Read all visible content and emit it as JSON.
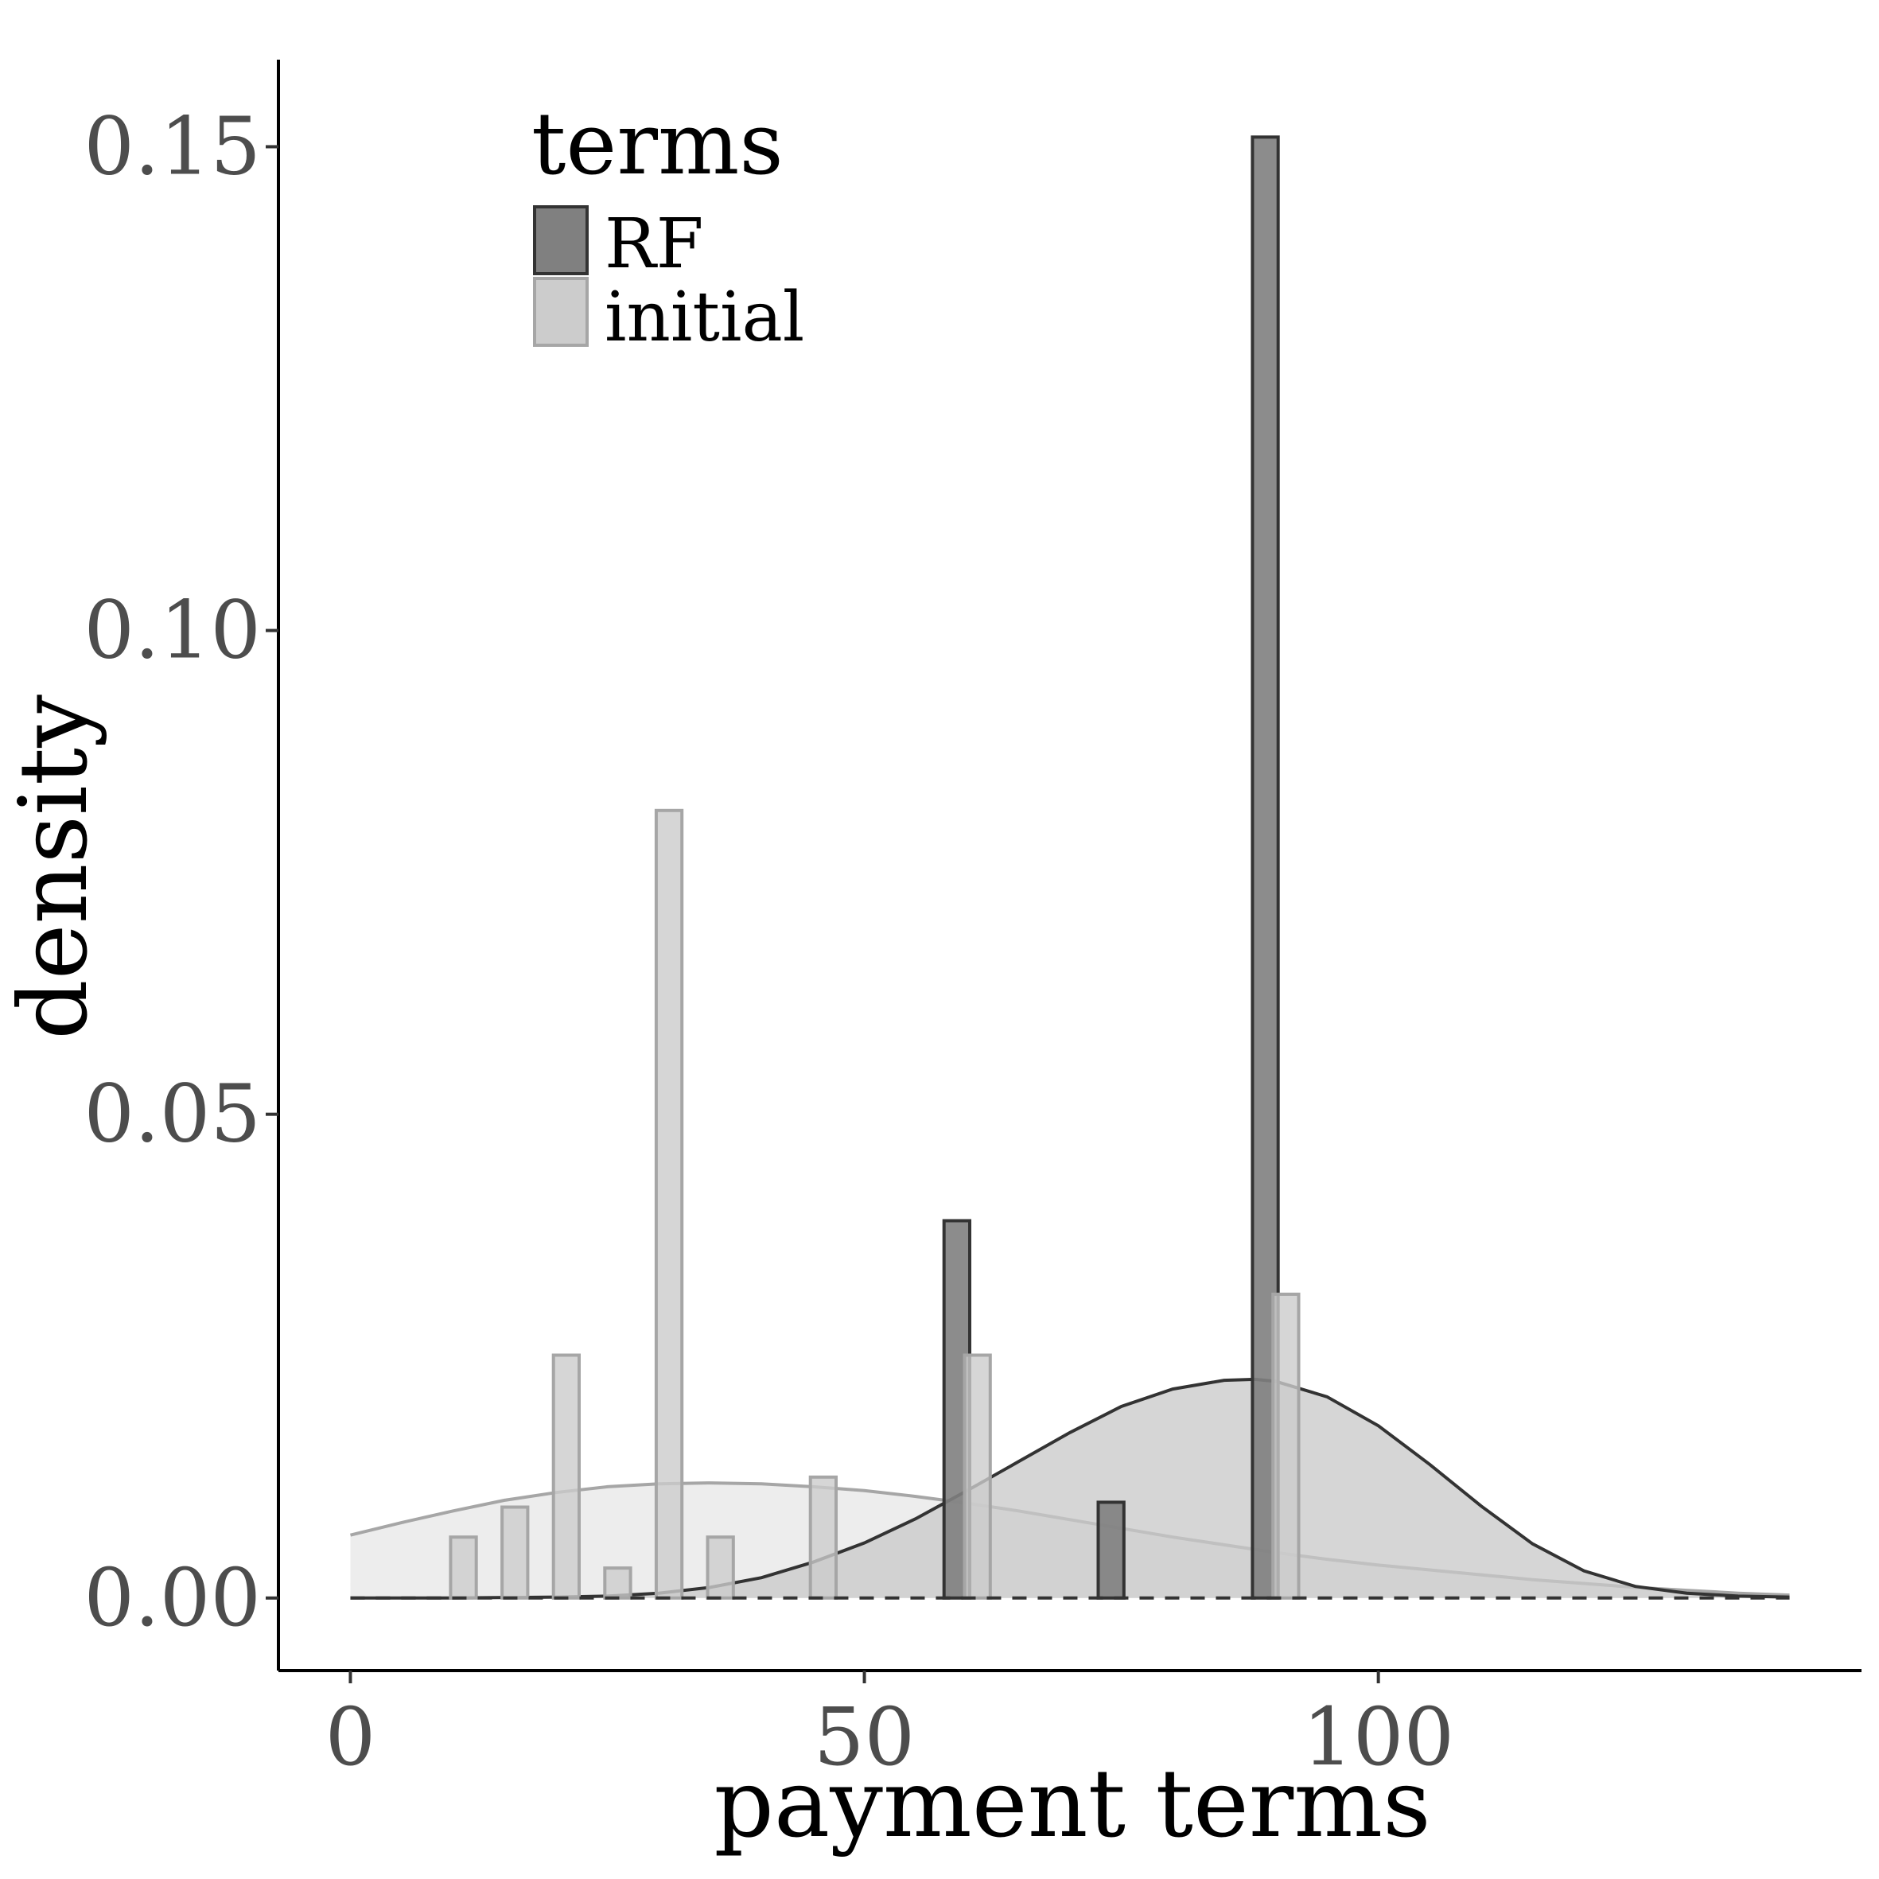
{
  "chart_data": {
    "type": "bar",
    "xlabel": "payment terms",
    "ylabel": "density",
    "xlim": [
      -7,
      147
    ],
    "ylim": [
      -0.0075,
      0.159
    ],
    "x_ticks": [
      0,
      50,
      100
    ],
    "x_tick_labels": [
      "0",
      "50",
      "100"
    ],
    "y_ticks": [
      0.0,
      0.05,
      0.1,
      0.15
    ],
    "y_tick_labels": [
      "0.00",
      "0.05",
      "0.10",
      "0.15"
    ],
    "grid": false,
    "legend": {
      "title": "terms",
      "position": "top-left",
      "entries": [
        {
          "label": "RF",
          "color": "#808080"
        },
        {
          "label": "initial",
          "color": "#cccccc"
        }
      ]
    },
    "bar_width": 2.5,
    "series": [
      {
        "name": "RF",
        "fill": "#808080",
        "stroke": "#333333",
        "bars": [
          {
            "x": 59,
            "density": 0.039
          },
          {
            "x": 74,
            "density": 0.0099
          },
          {
            "x": 89,
            "density": 0.151
          }
        ],
        "density_curve": {
          "x": [
            0,
            10,
            20,
            25,
            30,
            35,
            40,
            45,
            50,
            55,
            60,
            65,
            70,
            75,
            80,
            85,
            88,
            90,
            95,
            100,
            105,
            110,
            115,
            120,
            125,
            130,
            135,
            140
          ],
          "y": [
            0.0,
            0.0,
            0.0001,
            0.0002,
            0.0005,
            0.0011,
            0.0021,
            0.0037,
            0.0057,
            0.0082,
            0.0111,
            0.0141,
            0.0171,
            0.0198,
            0.0216,
            0.0225,
            0.0226,
            0.0224,
            0.0208,
            0.0178,
            0.0138,
            0.0095,
            0.0056,
            0.0028,
            0.0012,
            0.0005,
            0.0002,
            0.0001
          ]
        }
      },
      {
        "name": "initial",
        "fill": "#d3d3d3",
        "stroke": "#a6a6a6",
        "bars": [
          {
            "x": 11,
            "density": 0.0063
          },
          {
            "x": 16,
            "density": 0.0094
          },
          {
            "x": 21,
            "density": 0.0251
          },
          {
            "x": 26,
            "density": 0.0031
          },
          {
            "x": 31,
            "density": 0.0814
          },
          {
            "x": 36,
            "density": 0.0063
          },
          {
            "x": 46,
            "density": 0.0125
          },
          {
            "x": 61,
            "density": 0.0251
          },
          {
            "x": 91,
            "density": 0.0314
          }
        ],
        "density_curve": {
          "x": [
            0,
            5,
            10,
            15,
            20,
            25,
            30,
            35,
            40,
            45,
            50,
            55,
            60,
            65,
            70,
            75,
            80,
            85,
            90,
            95,
            100,
            105,
            110,
            115,
            120,
            125,
            130,
            135,
            140
          ],
          "y": [
            0.0065,
            0.0078,
            0.009,
            0.0101,
            0.0109,
            0.0115,
            0.0118,
            0.0119,
            0.0118,
            0.0115,
            0.0111,
            0.0105,
            0.0098,
            0.009,
            0.0081,
            0.0072,
            0.0063,
            0.0055,
            0.0047,
            0.004,
            0.0034,
            0.0029,
            0.0024,
            0.0019,
            0.0015,
            0.0011,
            0.0008,
            0.0005,
            0.0003
          ]
        }
      }
    ],
    "reference_line": {
      "y": 0,
      "style": "dashed"
    }
  }
}
